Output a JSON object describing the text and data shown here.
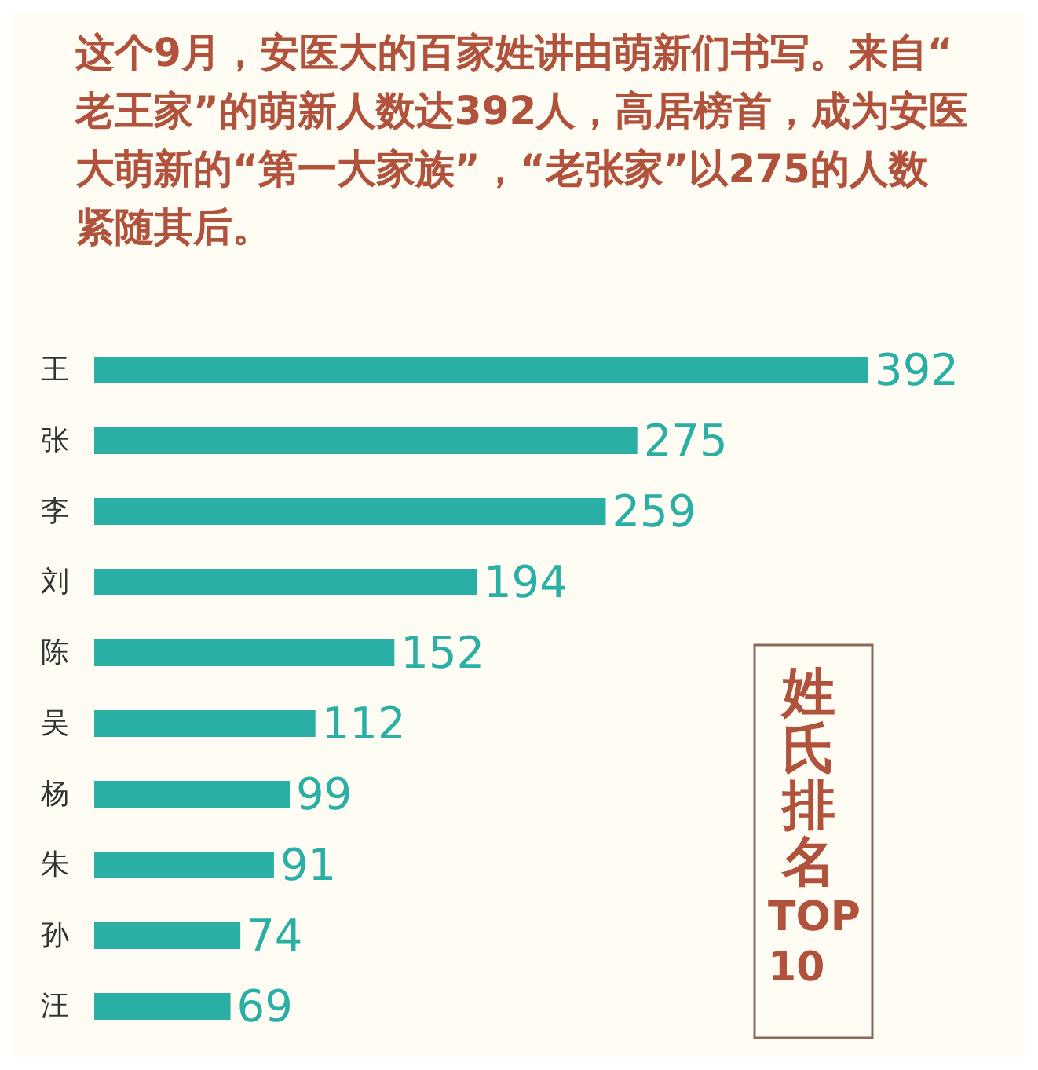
{
  "chart_data": {
    "type": "bar",
    "orientation": "horizontal",
    "title": "这个9月，安医大的百家姓讲由萌新们书写。来自“老王家”的萌新人数达392人，高居榜首，成为安医大萌新的“第一大家族”，“老张家”以275的人数紧随其后。",
    "categories": [
      "王",
      "张",
      "李",
      "刘",
      "陈",
      "吴",
      "杨",
      "朱",
      "孙",
      "汪"
    ],
    "values": [
      392,
      275,
      259,
      194,
      152,
      112,
      99,
      91,
      74,
      69
    ],
    "color": "#2aafa4",
    "data_labels": true,
    "annotations": [
      "姓氏排名",
      "TOP 10"
    ]
  }
}
